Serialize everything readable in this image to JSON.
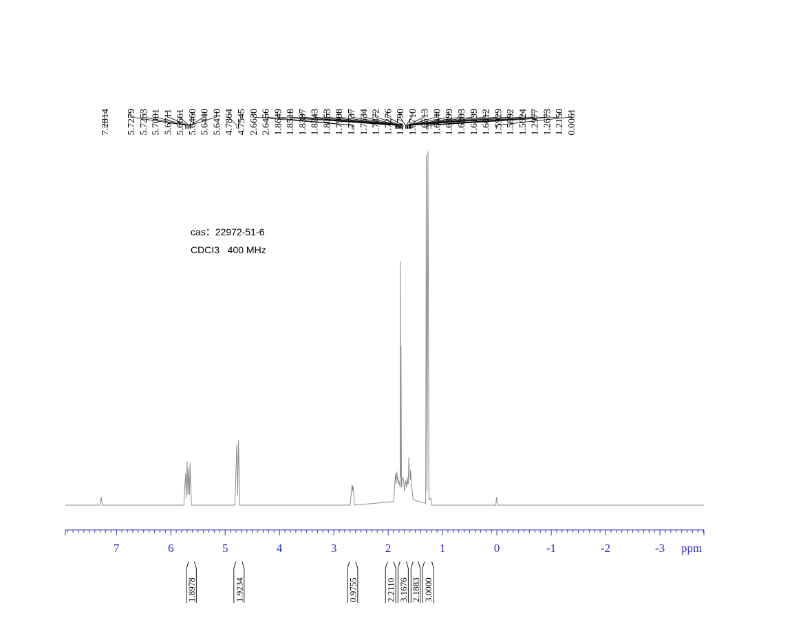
{
  "chart_data": {
    "type": "nmr",
    "annotations": [
      "cas：22972-51-6",
      "CDCI3   400 MHz"
    ],
    "xlabel": "ppm",
    "xlim": [
      7.94,
      -3.81
    ],
    "xticks": [
      7,
      6,
      5,
      4,
      3,
      2,
      1,
      0,
      -1,
      -2,
      -3
    ],
    "minor_ticks_per_major": 10,
    "ylim": [
      0,
      100
    ],
    "color": "#8c8c8c",
    "axis_color": "#3030c0",
    "spectrum": {
      "x": [
        7.94,
        7.3,
        7.2814,
        7.26,
        5.76,
        5.7279,
        5.715,
        5.7001,
        5.685,
        5.6711,
        5.655,
        5.646,
        5.62,
        4.82,
        4.7864,
        4.77,
        4.7545,
        4.73,
        2.7,
        2.663,
        2.655,
        2.6456,
        2.62,
        1.9,
        1.8649,
        1.855,
        1.8397,
        1.83,
        1.8243,
        1.815,
        1.8053,
        1.7908,
        1.78,
        1.7737,
        1.768,
        1.7634,
        1.755,
        1.7472,
        1.7276,
        1.7,
        1.679,
        1.671,
        1.66,
        1.6513,
        1.644,
        1.6399,
        1.63,
        1.6203,
        1.6139,
        1.6012,
        1.5929,
        1.5892,
        1.5624,
        1.54,
        1.31,
        1.2977,
        1.285,
        1.2673,
        1.25,
        1.215,
        1.2,
        0.02,
        0.0061,
        -0.01,
        -3.81
      ],
      "y": [
        0,
        0,
        2.3,
        0,
        0,
        9,
        2,
        12.3,
        3,
        10.5,
        3,
        12,
        0,
        0,
        17.1,
        3,
        18.3,
        0,
        0,
        5.8,
        4,
        5.4,
        0,
        1,
        9,
        6,
        9.5,
        7,
        8,
        6,
        7,
        6,
        5,
        68.9,
        8,
        45,
        5,
        7,
        8,
        4,
        7,
        6,
        5,
        8,
        6,
        7,
        6,
        13.6,
        9,
        8.5,
        7,
        10,
        4.5,
        1.5,
        0.5,
        99,
        4,
        100,
        1.5,
        2,
        0,
        0,
        2.3,
        0,
        0
      ]
    },
    "peaks": {
      "values": [
        7.2814,
        5.7279,
        5.7253,
        5.7001,
        5.6711,
        5.6661,
        5.646,
        5.644,
        5.641,
        4.7864,
        4.7545,
        2.663,
        2.6456,
        1.8649,
        1.8518,
        1.8397,
        1.8243,
        1.8053,
        1.7908,
        1.7737,
        1.7634,
        1.7472,
        1.7276,
        1.679,
        1.671,
        1.6513,
        1.644,
        1.6399,
        1.6203,
        1.6139,
        1.6012,
        1.5929,
        1.5892,
        1.5624,
        1.2977,
        1.2673,
        1.215,
        0.0061
      ],
      "value_labels": [
        "7.2814",
        "5.7279",
        "5.7253",
        "5.7001",
        "5.6711",
        "5.6661",
        "5.6460",
        "5.6440",
        "5.6410",
        "4.7864",
        "4.7545",
        "2.6630",
        "2.6456",
        "1.8649",
        "1.8518",
        "1.8397",
        "1.8243",
        "1.8053",
        "1.7908",
        "1.7737",
        "1.7634",
        "1.7472",
        "1.7276",
        "1.6790",
        "1.6710",
        "1.6513",
        "1.6440",
        "1.6399",
        "1.6203",
        "1.6139",
        "1.6012",
        "1.5929",
        "1.5892",
        "1.5624",
        "1.2977",
        "1.2673",
        "1.2150",
        "0.0061"
      ]
    },
    "integrals": {
      "ranges": [
        [
          5.71,
          5.53
        ],
        [
          4.84,
          4.65
        ],
        [
          2.75,
          2.56
        ],
        [
          2.05,
          1.86
        ],
        [
          1.82,
          1.63
        ],
        [
          1.58,
          1.41
        ],
        [
          1.37,
          1.16
        ]
      ],
      "values": [
        1.8978,
        1.9234,
        0.9755,
        2.211,
        3.1676,
        2.1883,
        3
      ],
      "value_labels": [
        "1.8978",
        "1.9234",
        "0.9755",
        "2.2110",
        "3.1676",
        "2.1883",
        "3.0000"
      ]
    }
  }
}
